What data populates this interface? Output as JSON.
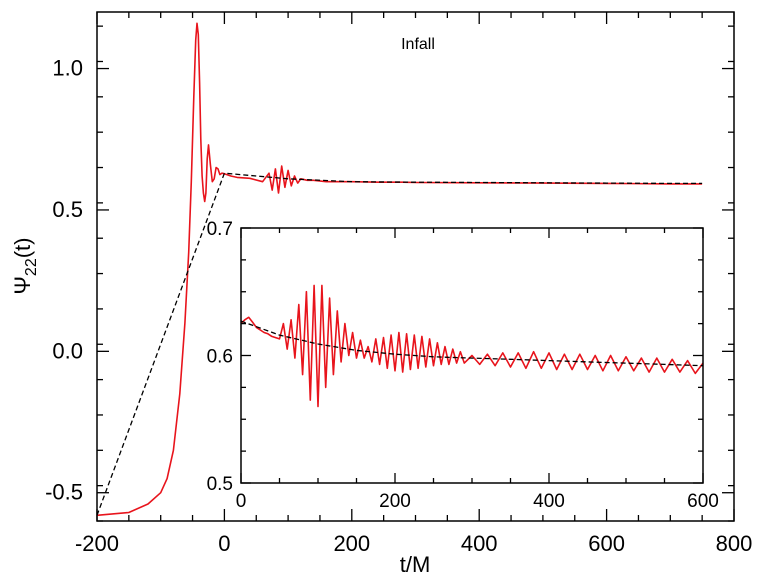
{
  "chart_data": [
    {
      "type": "line",
      "title": "",
      "annotation": "Infall",
      "xlabel": "t/M",
      "ylabel": {
        "symbol": "Ψ",
        "subscript": "22",
        "suffix": "(t)"
      },
      "xlim": [
        -200,
        800
      ],
      "ylim": [
        -0.6,
        1.2
      ],
      "x_ticks": [
        -200,
        0,
        200,
        400,
        600,
        800
      ],
      "x_tick_labels": [
        "-200",
        "0",
        "200",
        "400",
        "600",
        "800"
      ],
      "y_ticks": [
        -0.5,
        0.0,
        0.5,
        1.0
      ],
      "y_tick_labels": [
        "-0.5",
        "0.0",
        "0.5",
        "1.0"
      ],
      "grid": false,
      "series": [
        {
          "style": "solid",
          "color": "#e8141c",
          "x": [
            -200,
            -150,
            -120,
            -100,
            -90,
            -80,
            -70,
            -62,
            -56,
            -52,
            -48,
            -45,
            -43,
            -41,
            -39,
            -37,
            -35,
            -33,
            -31,
            -29,
            -27,
            -25,
            -22,
            -19,
            -16,
            -13,
            -10,
            -7,
            -4,
            0,
            10,
            20,
            40,
            60,
            70,
            75,
            80,
            85,
            90,
            95,
            100,
            105,
            110,
            115,
            120,
            130,
            140,
            160,
            200,
            240,
            280,
            300,
            400,
            500,
            600,
            700,
            750
          ],
          "y": [
            -0.58,
            -0.57,
            -0.54,
            -0.5,
            -0.45,
            -0.35,
            -0.15,
            0.1,
            0.35,
            0.6,
            0.9,
            1.1,
            1.16,
            1.12,
            0.95,
            0.75,
            0.62,
            0.56,
            0.53,
            0.56,
            0.68,
            0.73,
            0.66,
            0.6,
            0.61,
            0.65,
            0.645,
            0.625,
            0.63,
            0.628,
            0.62,
            0.615,
            0.612,
            0.6,
            0.63,
            0.57,
            0.645,
            0.56,
            0.655,
            0.58,
            0.64,
            0.585,
            0.62,
            0.595,
            0.61,
            0.605,
            0.605,
            0.6,
            0.6,
            0.598,
            0.598,
            0.597,
            0.596,
            0.595,
            0.594,
            0.592,
            0.592
          ]
        },
        {
          "style": "dashed",
          "color": "#000000",
          "x": [
            -200,
            0,
            100,
            200,
            300,
            400,
            500,
            600,
            700,
            750
          ],
          "y": [
            -0.58,
            0.63,
            0.61,
            0.6,
            0.598,
            0.597,
            0.596,
            0.595,
            0.594,
            0.594
          ]
        }
      ]
    },
    {
      "type": "line",
      "title": "",
      "xlabel": "",
      "ylabel": "",
      "xlim": [
        0,
        600
      ],
      "ylim": [
        0.5,
        0.7
      ],
      "x_ticks": [
        0,
        200,
        400,
        600
      ],
      "x_tick_labels": [
        "0",
        "200",
        "400",
        "600"
      ],
      "y_ticks": [
        0.5,
        0.6,
        0.7
      ],
      "y_tick_labels": [
        "0.5",
        "0.6",
        "0.7"
      ],
      "grid": false,
      "series": [
        {
          "style": "solid",
          "color": "#e8141c",
          "x": [
            0,
            5,
            10,
            15,
            20,
            25,
            30,
            35,
            40,
            45,
            50,
            55,
            60,
            65,
            70,
            75,
            80,
            85,
            90,
            95,
            100,
            105,
            110,
            115,
            120,
            125,
            130,
            135,
            140,
            145,
            150,
            155,
            160,
            165,
            170,
            175,
            180,
            185,
            190,
            195,
            200,
            205,
            210,
            215,
            220,
            225,
            230,
            235,
            240,
            245,
            250,
            255,
            260,
            265,
            270,
            275,
            280,
            285,
            290,
            300,
            310,
            320,
            330,
            340,
            350,
            360,
            370,
            380,
            390,
            400,
            410,
            420,
            430,
            440,
            450,
            460,
            470,
            480,
            490,
            500,
            510,
            520,
            530,
            540,
            550,
            560,
            570,
            580,
            590,
            600
          ],
          "y": [
            0.625,
            0.628,
            0.63,
            0.626,
            0.622,
            0.62,
            0.618,
            0.617,
            0.615,
            0.614,
            0.613,
            0.625,
            0.605,
            0.628,
            0.598,
            0.64,
            0.585,
            0.65,
            0.565,
            0.655,
            0.56,
            0.655,
            0.575,
            0.645,
            0.585,
            0.635,
            0.595,
            0.625,
            0.6,
            0.618,
            0.598,
            0.612,
            0.598,
            0.607,
            0.595,
            0.613,
            0.593,
            0.614,
            0.59,
            0.616,
            0.588,
            0.618,
            0.587,
            0.617,
            0.589,
            0.616,
            0.59,
            0.615,
            0.591,
            0.613,
            0.592,
            0.61,
            0.593,
            0.607,
            0.593,
            0.605,
            0.594,
            0.603,
            0.594,
            0.6,
            0.593,
            0.601,
            0.592,
            0.602,
            0.591,
            0.602,
            0.59,
            0.603,
            0.59,
            0.602,
            0.589,
            0.601,
            0.589,
            0.601,
            0.589,
            0.6,
            0.588,
            0.6,
            0.588,
            0.599,
            0.588,
            0.598,
            0.587,
            0.598,
            0.587,
            0.597,
            0.587,
            0.596,
            0.586,
            0.594
          ]
        },
        {
          "style": "dashed",
          "color": "#000000",
          "x": [
            0,
            50,
            100,
            150,
            200,
            250,
            300,
            350,
            400,
            450,
            500,
            550,
            600
          ],
          "y": [
            0.627,
            0.616,
            0.609,
            0.604,
            0.601,
            0.599,
            0.598,
            0.597,
            0.596,
            0.595,
            0.594,
            0.593,
            0.592
          ]
        }
      ]
    }
  ]
}
